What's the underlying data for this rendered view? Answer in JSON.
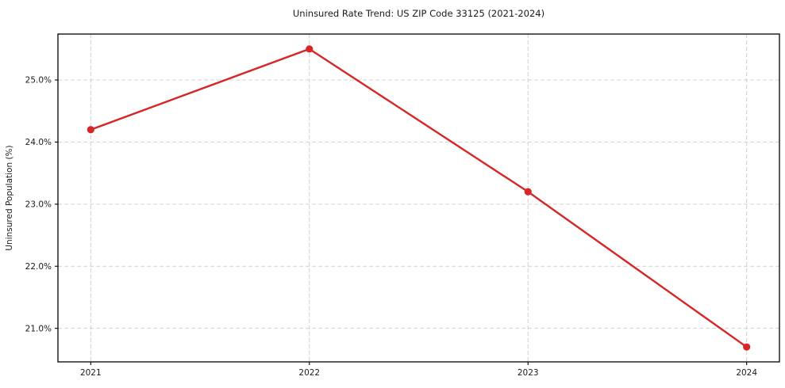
{
  "title": "Uninsured Rate Trend: US ZIP Code 33125 (2021-2024)",
  "chart_data": {
    "type": "line",
    "title": "Uninsured Rate Trend: US ZIP Code 33125 (2021-2024)",
    "xlabel": "",
    "ylabel": "Uninsured Population (%)",
    "x": [
      2021,
      2022,
      2023,
      2024
    ],
    "x_tick_labels": [
      "2021",
      "2022",
      "2023",
      "2024"
    ],
    "series": [
      {
        "name": "Uninsured Rate",
        "values": [
          24.2,
          25.5,
          23.2,
          20.7
        ]
      }
    ],
    "y_ticks": [
      21.0,
      22.0,
      23.0,
      24.0,
      25.0
    ],
    "y_tick_labels": [
      "21.0%",
      "22.0%",
      "23.0%",
      "24.0%",
      "25.0%"
    ],
    "xlim": [
      2020.85,
      2024.15
    ],
    "ylim": [
      20.46,
      25.74
    ],
    "grid": "dashed-both-axes",
    "legend": "none",
    "colors": {
      "line": "#d62728",
      "marker": "#d62728",
      "gridline": "#cfcfcf",
      "spine": "#000000",
      "text": "#1a1a1a",
      "background": "#ffffff"
    }
  }
}
